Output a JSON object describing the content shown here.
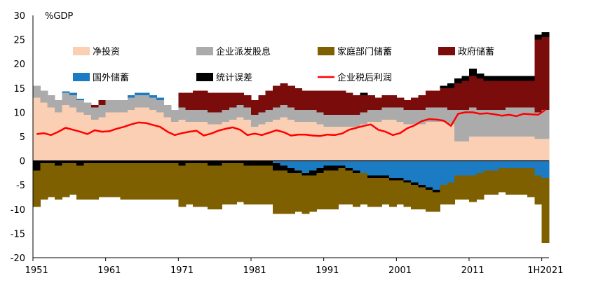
{
  "chart_data": {
    "type": "bar",
    "stacked": true,
    "ylabel": "%GDP",
    "ylim": [
      -20,
      30
    ],
    "yticks": [
      30,
      25,
      20,
      15,
      10,
      5,
      0,
      -5,
      -10,
      -15,
      -20
    ],
    "xtick_labels": [
      "1951",
      "1961",
      "1971",
      "1981",
      "1991",
      "2001",
      "2011",
      "1H2021"
    ],
    "legend_position": "top",
    "colors": {
      "net_investment": "#FBCFB3",
      "corporate_dividends": "#ABABAB",
      "household_savings": "#7F6000",
      "government_savings": "#7B0C0C",
      "foreign_savings": "#1B7BC3",
      "statistical_discrepancy": "#000000",
      "corporate_profits_after_tax": "#FF0000"
    },
    "series": [
      {
        "key": "net_investment",
        "name": "净投资",
        "kind": "bar"
      },
      {
        "key": "corporate_dividends",
        "name": "企业派发股息",
        "kind": "bar"
      },
      {
        "key": "household_savings",
        "name": "家庭部门储蓄",
        "kind": "bar"
      },
      {
        "key": "government_savings",
        "name": "政府储蓄",
        "kind": "bar"
      },
      {
        "key": "foreign_savings",
        "name": "国外储蓄",
        "kind": "bar"
      },
      {
        "key": "statistical_discrepancy",
        "name": "统计误差",
        "kind": "bar"
      },
      {
        "key": "corporate_profits_after_tax",
        "name": "企业税后利润",
        "kind": "line"
      }
    ],
    "periods": [
      "1951",
      "1952",
      "1953",
      "1954",
      "1955",
      "1956",
      "1957",
      "1958",
      "1959",
      "1960",
      "1961",
      "1962",
      "1963",
      "1964",
      "1965",
      "1966",
      "1967",
      "1968",
      "1969",
      "1970",
      "1971",
      "1972",
      "1973",
      "1974",
      "1975",
      "1976",
      "1977",
      "1978",
      "1979",
      "1980",
      "1981",
      "1982",
      "1983",
      "1984",
      "1985",
      "1986",
      "1987",
      "1988",
      "1989",
      "1990",
      "1991",
      "1992",
      "1993",
      "1994",
      "1995",
      "1996",
      "1997",
      "1998",
      "1999",
      "2000",
      "2001",
      "2002",
      "2003",
      "2004",
      "2005",
      "2006",
      "2007",
      "2008",
      "2009",
      "2010",
      "2011",
      "2012",
      "2013",
      "2014",
      "2015",
      "2016",
      "2017",
      "2018",
      "2019",
      "2020",
      "1H2021"
    ],
    "values": {
      "net_investment": [
        13,
        12,
        11,
        10,
        11.5,
        11,
        10,
        9.5,
        8.5,
        9,
        10,
        10,
        10,
        10.5,
        11,
        11,
        10.5,
        10,
        9,
        8,
        8.5,
        8,
        8,
        8,
        7.5,
        7.5,
        8,
        8.5,
        9,
        8.5,
        7,
        7.5,
        8,
        8.5,
        9,
        8.5,
        8,
        8,
        8,
        7.5,
        7,
        7,
        7,
        7,
        7,
        7.5,
        8,
        8,
        8.5,
        8.5,
        8,
        7.5,
        7.5,
        7.5,
        8,
        8,
        8,
        7.5,
        4,
        4,
        5,
        5,
        5,
        5,
        5,
        5,
        5,
        5,
        5,
        4.5,
        4.5
      ],
      "corporate_dividends": [
        2.5,
        2.5,
        2.5,
        2.5,
        2.5,
        2.5,
        2.5,
        2.5,
        2.5,
        2.5,
        2.5,
        2.5,
        2.5,
        2.5,
        2.5,
        2.5,
        2.5,
        2.5,
        2.5,
        2.5,
        2.5,
        2.5,
        2.5,
        2.5,
        2.5,
        2.5,
        2.5,
        2.5,
        2.5,
        2.5,
        2.5,
        2.5,
        2.5,
        2.5,
        2.5,
        2.5,
        2.5,
        2.5,
        2.5,
        2.5,
        2.5,
        2.5,
        2.5,
        2.5,
        2.5,
        2.5,
        2.5,
        2.5,
        2.5,
        2.5,
        3,
        3,
        3,
        3,
        3,
        3,
        3,
        3,
        6.5,
        6.5,
        6,
        5.5,
        5.5,
        5.5,
        5.5,
        6,
        6,
        6,
        6,
        5.5,
        6
      ],
      "household_savings": [
        -7.5,
        -7.5,
        -7,
        -7,
        -7,
        -6.5,
        -7,
        -7.5,
        -7.5,
        -7,
        -7,
        -7,
        -7.5,
        -7.5,
        -7.5,
        -7.5,
        -7.5,
        -7.5,
        -7.5,
        -7.5,
        -8.5,
        -8.5,
        -9,
        -9,
        -9,
        -9,
        -8.5,
        -8.5,
        -8,
        -8,
        -8,
        -8,
        -8,
        -9,
        -9,
        -8.5,
        -8,
        -8,
        -7.5,
        -7.5,
        -8,
        -8,
        -7.5,
        -7,
        -7,
        -6.5,
        -6,
        -6,
        -5.5,
        -5.5,
        -5,
        -5,
        -5,
        -4.5,
        -4.5,
        -4,
        -4,
        -4.5,
        -5,
        -5,
        -5.5,
        -5.5,
        -5,
        -5,
        -5,
        -5.5,
        -5.5,
        -5.5,
        -6,
        -6,
        -13.5
      ],
      "government_savings": [
        0,
        0,
        0,
        0,
        0,
        0,
        0,
        0,
        0.5,
        1,
        0,
        0,
        0,
        0,
        0,
        0,
        0,
        0,
        0,
        0,
        3,
        3.5,
        4,
        4,
        4,
        4,
        3.5,
        3,
        2.5,
        2.5,
        3,
        3.5,
        4,
        4.5,
        4.5,
        4.5,
        4.5,
        4,
        4,
        4.5,
        5,
        5,
        5,
        4.5,
        4,
        3.5,
        3,
        2.5,
        2.5,
        2.5,
        2,
        2,
        2.5,
        3,
        3.5,
        3.5,
        4,
        4.5,
        5.5,
        6,
        6.5,
        6.5,
        6,
        6,
        6,
        5.5,
        5.5,
        5.5,
        5.5,
        15,
        15
      ],
      "foreign_savings": [
        0,
        0,
        0,
        0,
        0.3,
        0.5,
        0.3,
        0,
        0,
        0,
        0,
        0,
        0,
        0.5,
        0.5,
        0.5,
        0.5,
        0.5,
        0,
        0,
        0,
        0,
        0,
        0,
        0,
        0,
        0,
        0,
        0,
        0,
        0,
        0,
        0,
        -0.5,
        -1,
        -1.5,
        -2,
        -2.5,
        -2,
        -1.5,
        -1,
        -1,
        -1,
        -1.5,
        -2,
        -2.5,
        -3,
        -3,
        -3,
        -3.5,
        -3.5,
        -4,
        -4.5,
        -5,
        -5.5,
        -6,
        -5,
        -4.5,
        -3,
        -3,
        -3,
        -2.5,
        -2,
        -2,
        -1.5,
        -1.5,
        -1.5,
        -1.5,
        -1.5,
        -3,
        -3.5
      ],
      "statistical_discrepancy": [
        -2,
        -0.5,
        -0.5,
        -1,
        -0.5,
        -0.5,
        -1,
        -0.5,
        -0.5,
        -0.5,
        -0.5,
        -0.5,
        -0.5,
        -0.5,
        -0.5,
        -0.5,
        -0.5,
        -0.5,
        -0.5,
        -0.5,
        -1,
        -0.5,
        -0.5,
        -0.5,
        -1,
        -1,
        -0.5,
        -0.5,
        -0.5,
        -1,
        -1,
        -1,
        -1,
        -1.5,
        -1,
        -1,
        -0.5,
        -0.5,
        -1,
        -1,
        -1,
        -1,
        -0.5,
        -0.5,
        -0.5,
        0.5,
        -0.5,
        -0.5,
        -0.5,
        -0.5,
        -0.5,
        -0.5,
        -0.5,
        -0.5,
        -0.5,
        -0.5,
        0.5,
        1,
        1,
        1,
        1.5,
        1,
        1,
        1,
        1,
        1,
        1,
        1,
        1,
        1,
        1
      ],
      "corporate_profits_after_tax": [
        5.5,
        5.7,
        5.3,
        6,
        6.8,
        6.4,
        6,
        5.5,
        6.3,
        6,
        6.1,
        6.6,
        7,
        7.5,
        7.9,
        7.8,
        7.4,
        7,
        6,
        5.3,
        5.7,
        6,
        6.2,
        5.2,
        5.6,
        6.2,
        6.6,
        6.9,
        6.4,
        5.3,
        5.6,
        5.3,
        5.8,
        6.3,
        5.9,
        5.2,
        5.4,
        5.4,
        5.2,
        5.1,
        5.4,
        5.3,
        5.6,
        6.4,
        6.8,
        7.2,
        7.5,
        6.4,
        6,
        5.3,
        5.7,
        6.7,
        7.3,
        8.2,
        8.6,
        8.5,
        8.3,
        7.2,
        9.7,
        10,
        10,
        9.7,
        9.8,
        9.6,
        9.3,
        9.5,
        9.2,
        9.7,
        9.6,
        9.5,
        10.5
      ]
    }
  }
}
